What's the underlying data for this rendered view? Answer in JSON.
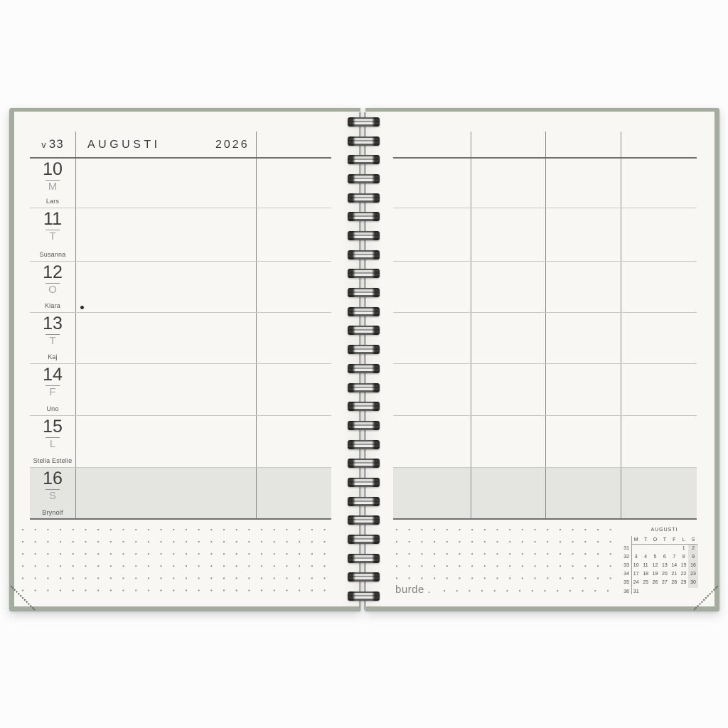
{
  "header": {
    "week_prefix": "v",
    "week_number": "33",
    "month": "AUGUSTI",
    "year": "2026"
  },
  "left_page": {
    "days": [
      {
        "date": "10",
        "weekday": "M",
        "name_day": "Lars"
      },
      {
        "date": "11",
        "weekday": "T",
        "name_day": "Susanna"
      },
      {
        "date": "12",
        "weekday": "O",
        "name_day": "Klara"
      },
      {
        "date": "13",
        "weekday": "T",
        "name_day": "Kaj"
      },
      {
        "date": "14",
        "weekday": "F",
        "name_day": "Uno"
      },
      {
        "date": "15",
        "weekday": "L",
        "name_day": "Stella Estelle"
      },
      {
        "date": "16",
        "weekday": "S",
        "name_day": "Brynolf"
      }
    ]
  },
  "right_page": {
    "brand_logo": "burde .",
    "mini_calendar": {
      "title": "AUGUSTI",
      "day_headers": [
        "M",
        "T",
        "O",
        "T",
        "F",
        "L",
        "S"
      ],
      "weeks": [
        {
          "week_number": "31",
          "days": [
            "",
            "",
            "",
            "",
            "",
            "1",
            "2"
          ]
        },
        {
          "week_number": "32",
          "days": [
            "3",
            "4",
            "5",
            "6",
            "7",
            "8",
            "9"
          ]
        },
        {
          "week_number": "33",
          "days": [
            "10",
            "11",
            "12",
            "13",
            "14",
            "15",
            "16"
          ]
        },
        {
          "week_number": "34",
          "days": [
            "17",
            "18",
            "19",
            "20",
            "21",
            "22",
            "23"
          ]
        },
        {
          "week_number": "35",
          "days": [
            "24",
            "25",
            "26",
            "27",
            "28",
            "29",
            "30"
          ]
        },
        {
          "week_number": "36",
          "days": [
            "31",
            "",
            "",
            "",
            "",
            "",
            ""
          ]
        }
      ]
    }
  },
  "colors": {
    "cover_green": "#a4ad9d",
    "paper": "#f8f7f4",
    "shaded_sunday_row": "#e4e4e1",
    "rule_dark": "#70706e",
    "rule_light": "#c6c6c3",
    "text_dark": "#3c3c3a",
    "text_muted": "#a6a6a4"
  }
}
